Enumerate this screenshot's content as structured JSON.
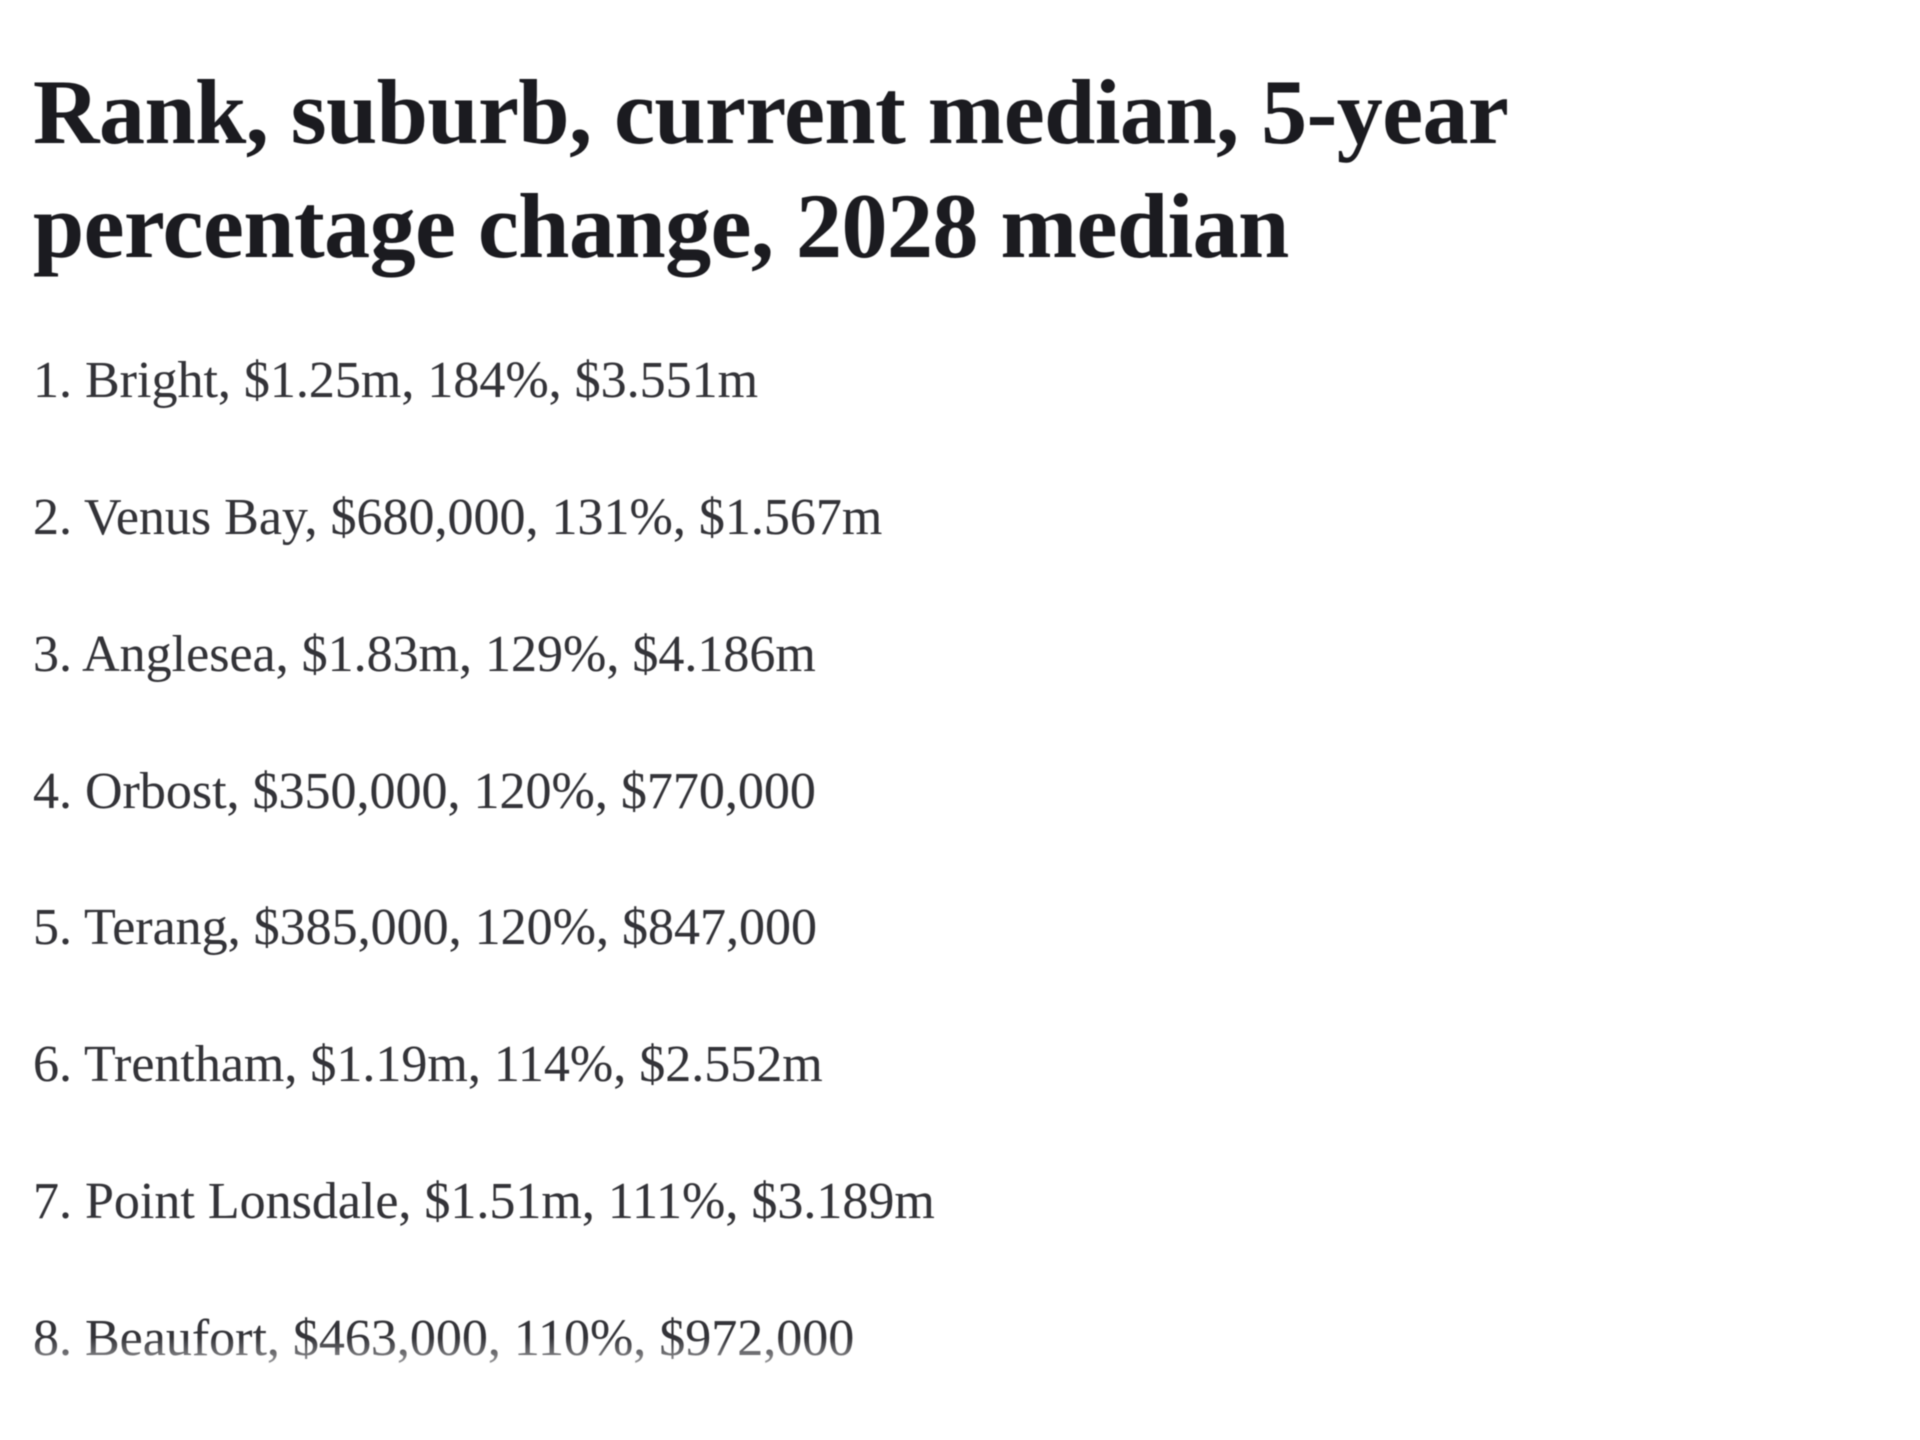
{
  "heading": {
    "text": "Rank, suburb, current median, 5-year percentage change, 2028 median"
  },
  "list": {
    "columns": [
      "rank",
      "suburb",
      "current median",
      "5-year percentage change",
      "2028 median"
    ],
    "items": [
      {
        "text": "1. Bright, $1.25m, 184%, $3.551m",
        "rank": 1,
        "suburb": "Bright",
        "current_median": "$1.25m",
        "five_year_change": "184%",
        "median_2028": "$3.551m"
      },
      {
        "text": "2. Venus Bay, $680,000, 131%, $1.567m",
        "rank": 2,
        "suburb": "Venus Bay",
        "current_median": "$680,000",
        "five_year_change": "131%",
        "median_2028": "$1.567m"
      },
      {
        "text": "3. Anglesea, $1.83m, 129%, $4.186m",
        "rank": 3,
        "suburb": "Anglesea",
        "current_median": "$1.83m",
        "five_year_change": "129%",
        "median_2028": "$4.186m"
      },
      {
        "text": "4. Orbost, $350,000, 120%, $770,000",
        "rank": 4,
        "suburb": "Orbost",
        "current_median": "$350,000",
        "five_year_change": "120%",
        "median_2028": "$770,000"
      },
      {
        "text": "5. Terang, $385,000, 120%, $847,000",
        "rank": 5,
        "suburb": "Terang",
        "current_median": "$385,000",
        "five_year_change": "120%",
        "median_2028": "$847,000"
      },
      {
        "text": "6. Trentham, $1.19m, 114%, $2.552m",
        "rank": 6,
        "suburb": "Trentham",
        "current_median": "$1.19m",
        "five_year_change": "114%",
        "median_2028": "$2.552m"
      },
      {
        "text": "7. Point Lonsdale, $1.51m, 111%, $3.189m",
        "rank": 7,
        "suburb": "Point Lonsdale",
        "current_median": "$1.51m",
        "five_year_change": "111%",
        "median_2028": "$3.189m"
      },
      {
        "text": "8. Beaufort, $463,000, 110%, $972,000",
        "rank": 8,
        "suburb": "Beaufort",
        "current_median": "$463,000",
        "five_year_change": "110%",
        "median_2028": "$972,000",
        "note": "partially cut off by bottom fade"
      }
    ]
  },
  "colors": {
    "background": "#ffffff",
    "heading_text": "#1b1b20",
    "body_text": "#333338"
  }
}
